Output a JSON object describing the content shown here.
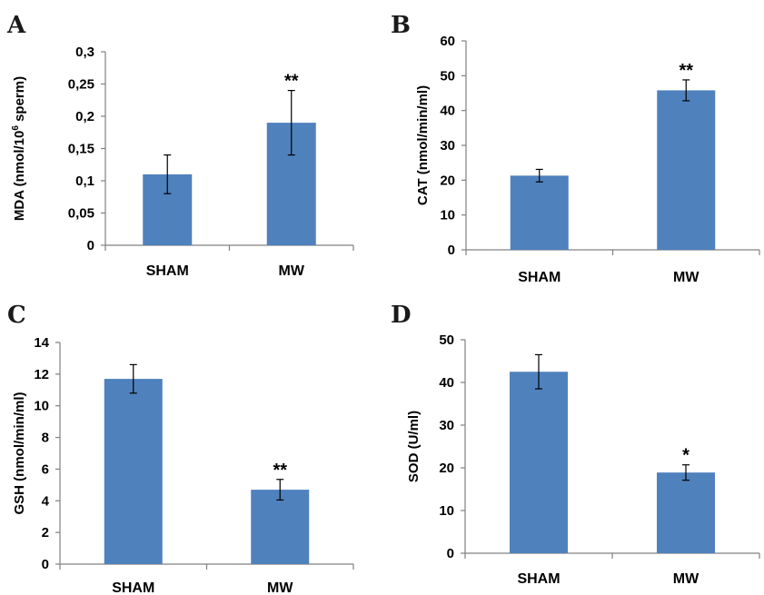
{
  "colors": {
    "bar": "#4f81bd"
  },
  "chart_data": [
    {
      "type": "bar",
      "panel": "A",
      "ylabel": "MDA (nmol/10",
      "ylabel_sup": "6",
      "ylabel_tail": " sperm)",
      "categories": [
        "SHAM",
        "MW"
      ],
      "values": [
        0.11,
        0.19
      ],
      "errors": [
        0.03,
        0.05
      ],
      "significance": [
        "",
        "**"
      ],
      "ylim": [
        0,
        0.3
      ],
      "yticks": [
        0,
        0.05,
        0.1,
        0.15,
        0.2,
        0.25,
        0.3
      ],
      "ytick_labels": [
        "0",
        "0,05",
        "0,1",
        "0,15",
        "0,2",
        "0,25",
        "0,3"
      ]
    },
    {
      "type": "bar",
      "panel": "B",
      "ylabel": "CAT (nmol/min/ml)",
      "categories": [
        "SHAM",
        "MW"
      ],
      "values": [
        21.3,
        45.8
      ],
      "errors": [
        1.8,
        3.0
      ],
      "significance": [
        "",
        "**"
      ],
      "ylim": [
        0,
        60
      ],
      "yticks": [
        0,
        10,
        20,
        30,
        40,
        50,
        60
      ],
      "ytick_labels": [
        "0",
        "10",
        "20",
        "30",
        "40",
        "50",
        "60"
      ]
    },
    {
      "type": "bar",
      "panel": "C",
      "ylabel": "GSH (nmol/min/ml)",
      "categories": [
        "SHAM",
        "MW"
      ],
      "values": [
        11.7,
        4.7
      ],
      "errors": [
        0.9,
        0.65
      ],
      "significance": [
        "",
        "**"
      ],
      "ylim": [
        0,
        14
      ],
      "yticks": [
        0,
        2,
        4,
        6,
        8,
        10,
        12,
        14
      ],
      "ytick_labels": [
        "0",
        "2",
        "4",
        "6",
        "8",
        "10",
        "12",
        "14"
      ]
    },
    {
      "type": "bar",
      "panel": "D",
      "ylabel": "SOD (U/ml)",
      "categories": [
        "SHAM",
        "MW"
      ],
      "values": [
        42.5,
        18.9
      ],
      "errors": [
        4.0,
        1.8
      ],
      "significance": [
        "",
        "*"
      ],
      "ylim": [
        0,
        50
      ],
      "yticks": [
        0,
        10,
        20,
        30,
        40,
        50
      ],
      "ytick_labels": [
        "0",
        "10",
        "20",
        "30",
        "40",
        "50"
      ]
    }
  ]
}
